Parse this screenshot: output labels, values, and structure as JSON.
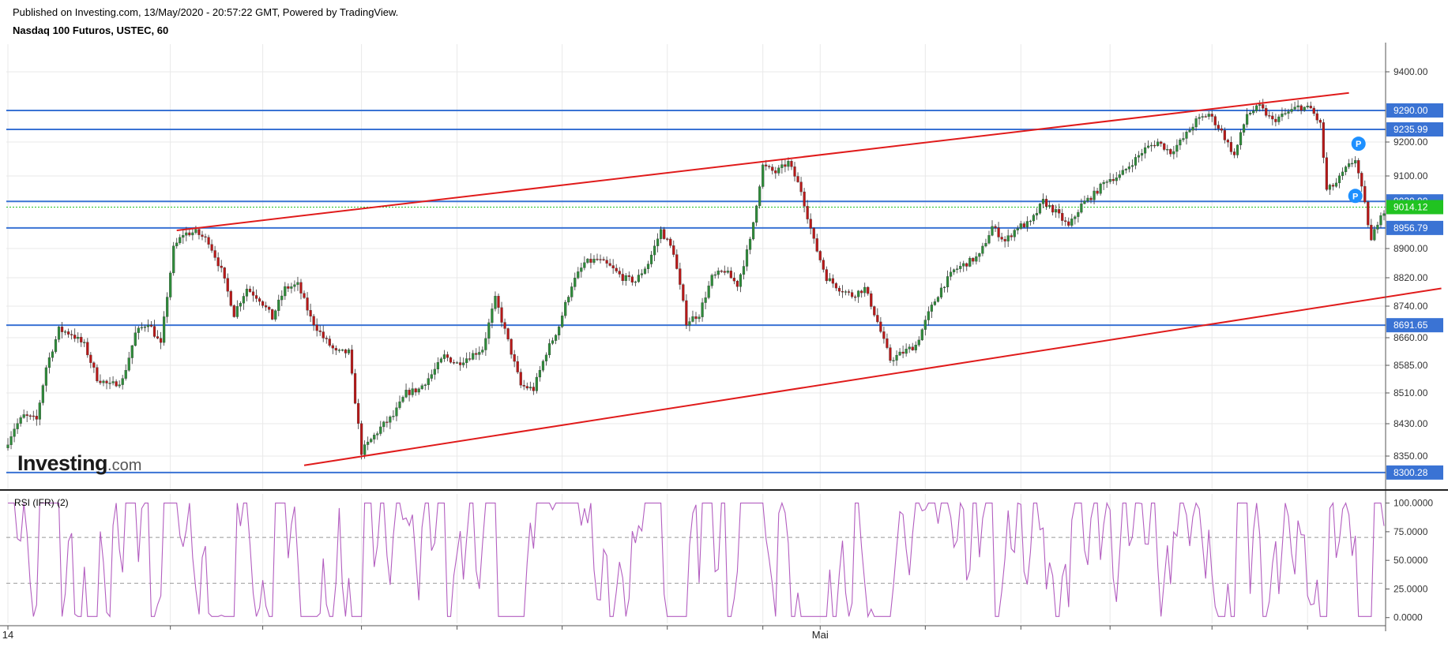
{
  "header": {
    "published": "Published on Investing.com, 13/May/2020 - 20:57:22 GMT, Powered by TradingView.",
    "symbol": "Nasdaq 100 Futuros, USTEC, 60"
  },
  "logo": {
    "main": "Investing",
    "suffix": ".com"
  },
  "colors": {
    "up": "#2e8b3a",
    "down": "#b81818",
    "wick": "#333333",
    "hline": "#3a73d4",
    "trend": "#e01b1b",
    "rsi": "#b35ec0",
    "price_badge": "#21c321",
    "level_badge": "#3a73d4",
    "grid": "#e9e9e9"
  },
  "chart_data": [
    {
      "type": "candlestick",
      "title": "Nasdaq 100 Futuros, USTEC, 60",
      "ylim": [
        8250,
        9470
      ],
      "y_ticks": [
        8350,
        8430,
        8510,
        8585,
        8660,
        8740,
        8820,
        8900,
        9100,
        9200,
        9400
      ],
      "y_tick_labels": [
        "8350.00",
        "8430.00",
        "8510.00",
        "8585.00",
        "8660.00",
        "8740.00",
        "8820.00",
        "8900.00",
        "9100.00",
        "9200.00",
        "9400.00"
      ],
      "x_labels": [
        {
          "label": "14",
          "index": 0
        },
        {
          "label": "Mai",
          "index": 255
        }
      ],
      "current_price": 9014.12,
      "current_price_label": "9014.12",
      "horizontal_levels": [
        {
          "value": 9290.0,
          "label": "9290.00"
        },
        {
          "value": 9235.99,
          "label": "9235.99"
        },
        {
          "value": 9030.0,
          "label": "9030.00"
        },
        {
          "value": 8956.79,
          "label": "8956.79"
        },
        {
          "value": 8691.65,
          "label": "8691.65"
        },
        {
          "value": 8300.28,
          "label": "8300.28"
        }
      ],
      "trend_lines": [
        {
          "name": "upper channel",
          "from": [
            53,
            8950
          ],
          "to": [
            421,
            9340
          ]
        },
        {
          "name": "lower channel",
          "from": [
            93,
            8322
          ],
          "to": [
            450,
            8790
          ]
        }
      ],
      "markers": [
        {
          "label": "P",
          "index": 424,
          "value": 9195
        },
        {
          "label": "P",
          "index": 423,
          "value": 9045
        }
      ],
      "candles_path": [
        [
          0,
          8370
        ],
        [
          3,
          8420
        ],
        [
          6,
          8450
        ],
        [
          10,
          8440
        ],
        [
          13,
          8580
        ],
        [
          17,
          8680
        ],
        [
          21,
          8670
        ],
        [
          25,
          8640
        ],
        [
          29,
          8550
        ],
        [
          33,
          8530
        ],
        [
          37,
          8545
        ],
        [
          41,
          8670
        ],
        [
          45,
          8700
        ],
        [
          49,
          8640
        ],
        [
          53,
          8900
        ],
        [
          56,
          8940
        ],
        [
          60,
          8945
        ],
        [
          64,
          8920
        ],
        [
          68,
          8840
        ],
        [
          72,
          8720
        ],
        [
          76,
          8790
        ],
        [
          80,
          8760
        ],
        [
          84,
          8710
        ],
        [
          88,
          8790
        ],
        [
          92,
          8800
        ],
        [
          96,
          8710
        ],
        [
          100,
          8660
        ],
        [
          104,
          8620
        ],
        [
          108,
          8620
        ],
        [
          112,
          8360
        ],
        [
          115,
          8390
        ],
        [
          118,
          8420
        ],
        [
          122,
          8450
        ],
        [
          126,
          8510
        ],
        [
          130,
          8520
        ],
        [
          134,
          8560
        ],
        [
          138,
          8610
        ],
        [
          142,
          8590
        ],
        [
          146,
          8610
        ],
        [
          150,
          8630
        ],
        [
          154,
          8760
        ],
        [
          158,
          8650
        ],
        [
          162,
          8530
        ],
        [
          166,
          8520
        ],
        [
          170,
          8620
        ],
        [
          174,
          8690
        ],
        [
          178,
          8800
        ],
        [
          182,
          8860
        ],
        [
          186,
          8870
        ],
        [
          190,
          8850
        ],
        [
          194,
          8820
        ],
        [
          198,
          8810
        ],
        [
          202,
          8860
        ],
        [
          206,
          8950
        ],
        [
          210,
          8890
        ],
        [
          214,
          8700
        ],
        [
          218,
          8720
        ],
        [
          222,
          8820
        ],
        [
          226,
          8840
        ],
        [
          230,
          8800
        ],
        [
          234,
          8920
        ],
        [
          238,
          9130
        ],
        [
          242,
          9110
        ],
        [
          246,
          9140
        ],
        [
          250,
          9060
        ],
        [
          254,
          8920
        ],
        [
          258,
          8820
        ],
        [
          262,
          8790
        ],
        [
          266,
          8770
        ],
        [
          270,
          8790
        ],
        [
          274,
          8700
        ],
        [
          278,
          8600
        ],
        [
          282,
          8620
        ],
        [
          286,
          8640
        ],
        [
          290,
          8720
        ],
        [
          294,
          8790
        ],
        [
          298,
          8840
        ],
        [
          302,
          8860
        ],
        [
          306,
          8880
        ],
        [
          310,
          8960
        ],
        [
          314,
          8920
        ],
        [
          318,
          8960
        ],
        [
          322,
          8970
        ],
        [
          326,
          9030
        ],
        [
          330,
          9000
        ],
        [
          334,
          8960
        ],
        [
          338,
          9020
        ],
        [
          342,
          9050
        ],
        [
          346,
          9090
        ],
        [
          350,
          9100
        ],
        [
          354,
          9140
        ],
        [
          358,
          9180
        ],
        [
          362,
          9200
        ],
        [
          366,
          9170
        ],
        [
          370,
          9210
        ],
        [
          374,
          9260
        ],
        [
          378,
          9280
        ],
        [
          382,
          9230
        ],
        [
          386,
          9160
        ],
        [
          390,
          9280
        ],
        [
          394,
          9300
        ],
        [
          398,
          9260
        ],
        [
          402,
          9280
        ],
        [
          406,
          9300
        ],
        [
          410,
          9295
        ],
        [
          413,
          9250
        ],
        [
          415,
          9060
        ],
        [
          418,
          9080
        ],
        [
          421,
          9120
        ],
        [
          424,
          9150
        ],
        [
          427,
          9020
        ],
        [
          429,
          8920
        ],
        [
          432,
          9000
        ]
      ],
      "rsi": {
        "name": "RSI (IFR) (2)",
        "ylim": [
          -5,
          108
        ],
        "y_ticks": [
          0,
          25,
          50,
          75,
          100
        ],
        "y_tick_labels": [
          "0.0000",
          "25.0000",
          "50.0000",
          "75.0000",
          "100.0000"
        ],
        "bands": [
          30,
          70
        ],
        "last_value": 80
      }
    }
  ]
}
